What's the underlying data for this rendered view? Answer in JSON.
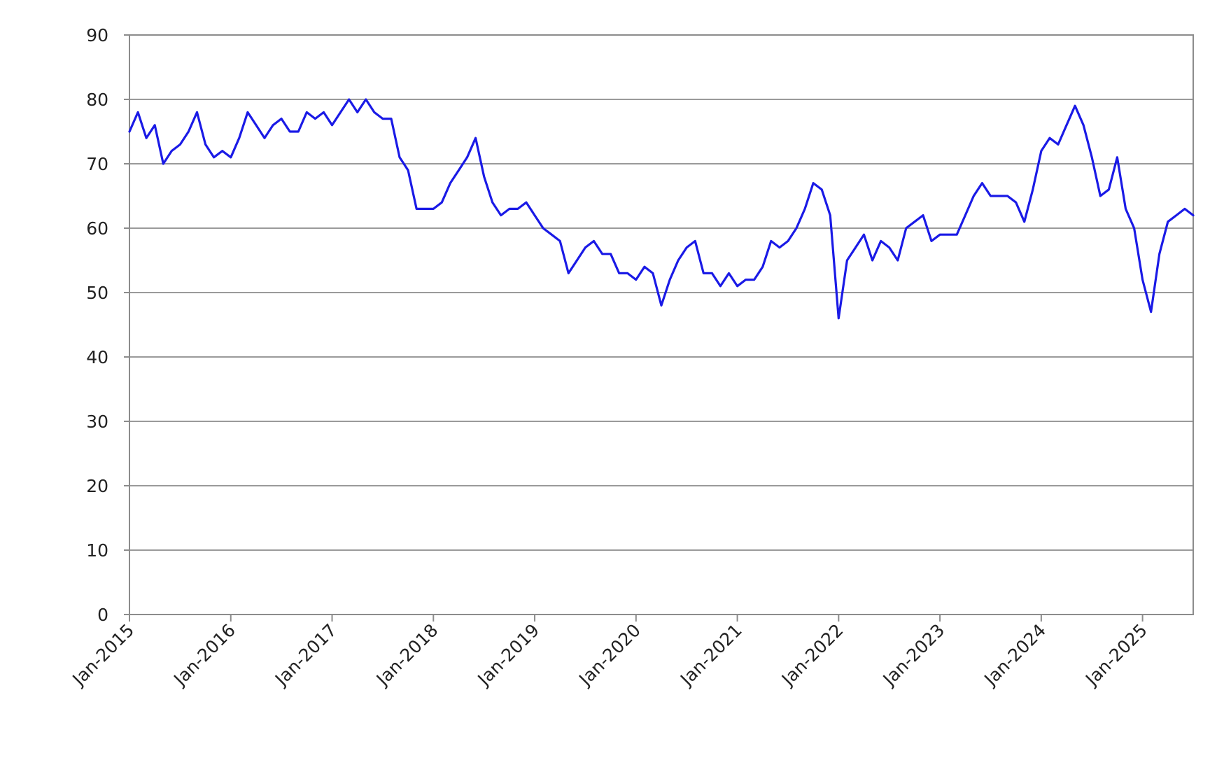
{
  "chart_data": {
    "type": "line",
    "title": "",
    "xlabel": "",
    "ylabel": "",
    "ylim": [
      0,
      90
    ],
    "y_ticks": [
      0,
      10,
      20,
      30,
      40,
      50,
      60,
      70,
      80,
      90
    ],
    "x_range": [
      "2015-01",
      "2025-07"
    ],
    "x_ticks": [
      {
        "date": "2015-01",
        "label": "Jan-2015"
      },
      {
        "date": "2016-01",
        "label": "Jan-2016"
      },
      {
        "date": "2017-01",
        "label": "Jan-2017"
      },
      {
        "date": "2018-01",
        "label": "Jan-2018"
      },
      {
        "date": "2019-01",
        "label": "Jan-2019"
      },
      {
        "date": "2020-01",
        "label": "Jan-2020"
      },
      {
        "date": "2021-01",
        "label": "Jan-2021"
      },
      {
        "date": "2022-01",
        "label": "Jan-2022"
      },
      {
        "date": "2023-01",
        "label": "Jan-2023"
      },
      {
        "date": "2024-01",
        "label": "Jan-2024"
      },
      {
        "date": "2025-01",
        "label": "Jan-2025"
      }
    ],
    "grid": "horizontal",
    "legend": "none",
    "series": [
      {
        "color": "#1a1ae6",
        "points": [
          [
            "2015-01",
            75
          ],
          [
            "2015-02",
            78
          ],
          [
            "2015-03",
            74
          ],
          [
            "2015-04",
            76
          ],
          [
            "2015-05",
            70
          ],
          [
            "2015-06",
            72
          ],
          [
            "2015-07",
            73
          ],
          [
            "2015-08",
            75
          ],
          [
            "2015-09",
            78
          ],
          [
            "2015-10",
            73
          ],
          [
            "2015-11",
            71
          ],
          [
            "2015-12",
            72
          ],
          [
            "2016-01",
            71
          ],
          [
            "2016-02",
            74
          ],
          [
            "2016-03",
            78
          ],
          [
            "2016-04",
            76
          ],
          [
            "2016-05",
            74
          ],
          [
            "2016-06",
            76
          ],
          [
            "2016-07",
            77
          ],
          [
            "2016-08",
            75
          ],
          [
            "2016-09",
            75
          ],
          [
            "2016-10",
            78
          ],
          [
            "2016-11",
            77
          ],
          [
            "2016-12",
            78
          ],
          [
            "2017-01",
            76
          ],
          [
            "2017-02",
            78
          ],
          [
            "2017-03",
            80
          ],
          [
            "2017-04",
            78
          ],
          [
            "2017-05",
            80
          ],
          [
            "2017-06",
            78
          ],
          [
            "2017-07",
            77
          ],
          [
            "2017-08",
            77
          ],
          [
            "2017-09",
            71
          ],
          [
            "2017-10",
            69
          ],
          [
            "2017-11",
            63
          ],
          [
            "2017-12",
            63
          ],
          [
            "2018-01",
            63
          ],
          [
            "2018-02",
            64
          ],
          [
            "2018-03",
            67
          ],
          [
            "2018-04",
            69
          ],
          [
            "2018-05",
            71
          ],
          [
            "2018-06",
            74
          ],
          [
            "2018-07",
            68
          ],
          [
            "2018-08",
            64
          ],
          [
            "2018-09",
            62
          ],
          [
            "2018-10",
            63
          ],
          [
            "2018-11",
            63
          ],
          [
            "2018-12",
            64
          ],
          [
            "2019-01",
            62
          ],
          [
            "2019-02",
            60
          ],
          [
            "2019-03",
            59
          ],
          [
            "2019-04",
            58
          ],
          [
            "2019-05",
            53
          ],
          [
            "2019-06",
            55
          ],
          [
            "2019-07",
            57
          ],
          [
            "2019-08",
            58
          ],
          [
            "2019-09",
            56
          ],
          [
            "2019-10",
            56
          ],
          [
            "2019-11",
            53
          ],
          [
            "2019-12",
            53
          ],
          [
            "2020-01",
            52
          ],
          [
            "2020-02",
            54
          ],
          [
            "2020-03",
            53
          ],
          [
            "2020-04",
            48
          ],
          [
            "2020-05",
            52
          ],
          [
            "2020-06",
            55
          ],
          [
            "2020-07",
            57
          ],
          [
            "2020-08",
            58
          ],
          [
            "2020-09",
            53
          ],
          [
            "2020-10",
            53
          ],
          [
            "2020-11",
            51
          ],
          [
            "2020-12",
            53
          ],
          [
            "2021-01",
            51
          ],
          [
            "2021-02",
            52
          ],
          [
            "2021-03",
            52
          ],
          [
            "2021-04",
            54
          ],
          [
            "2021-05",
            58
          ],
          [
            "2021-06",
            57
          ],
          [
            "2021-07",
            58
          ],
          [
            "2021-08",
            60
          ],
          [
            "2021-09",
            63
          ],
          [
            "2021-10",
            67
          ],
          [
            "2021-11",
            66
          ],
          [
            "2021-12",
            62
          ],
          [
            "2022-01",
            46
          ],
          [
            "2022-02",
            55
          ],
          [
            "2022-03",
            57
          ],
          [
            "2022-04",
            59
          ],
          [
            "2022-05",
            55
          ],
          [
            "2022-06",
            58
          ],
          [
            "2022-07",
            57
          ],
          [
            "2022-08",
            55
          ],
          [
            "2022-09",
            60
          ],
          [
            "2022-10",
            61
          ],
          [
            "2022-11",
            62
          ],
          [
            "2022-12",
            58
          ],
          [
            "2023-01",
            59
          ],
          [
            "2023-02",
            59
          ],
          [
            "2023-03",
            59
          ],
          [
            "2023-04",
            62
          ],
          [
            "2023-05",
            65
          ],
          [
            "2023-06",
            67
          ],
          [
            "2023-07",
            65
          ],
          [
            "2023-08",
            65
          ],
          [
            "2023-09",
            65
          ],
          [
            "2023-10",
            64
          ],
          [
            "2023-11",
            61
          ],
          [
            "2023-12",
            66
          ],
          [
            "2024-01",
            72
          ],
          [
            "2024-02",
            74
          ],
          [
            "2024-03",
            73
          ],
          [
            "2024-04",
            76
          ],
          [
            "2024-05",
            79
          ],
          [
            "2024-06",
            76
          ],
          [
            "2024-07",
            71
          ],
          [
            "2024-08",
            65
          ],
          [
            "2024-09",
            66
          ],
          [
            "2024-10",
            71
          ],
          [
            "2024-11",
            63
          ],
          [
            "2024-12",
            60
          ],
          [
            "2025-01",
            52
          ],
          [
            "2025-02",
            47
          ],
          [
            "2025-03",
            56
          ],
          [
            "2025-04",
            61
          ],
          [
            "2025-05",
            62
          ],
          [
            "2025-06",
            63
          ],
          [
            "2025-07",
            62
          ]
        ]
      }
    ]
  }
}
